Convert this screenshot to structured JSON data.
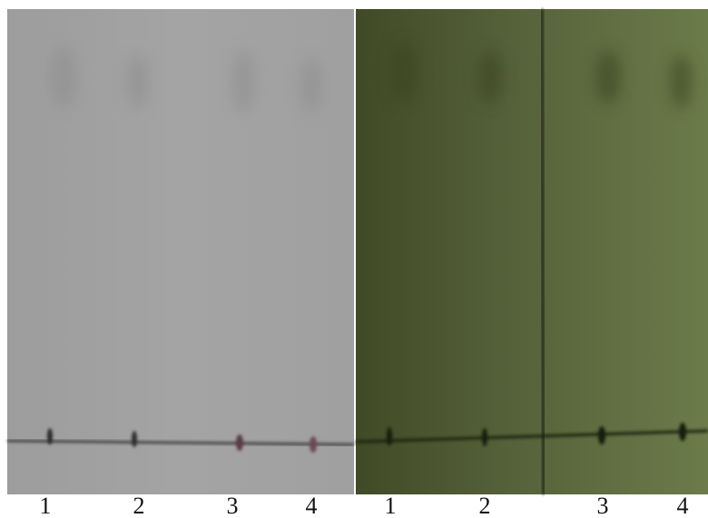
{
  "panels": [
    {
      "lanes": [
        "1",
        "2",
        "3",
        "4"
      ]
    },
    {
      "lanes": [
        "1",
        "2",
        "3",
        "4"
      ]
    }
  ]
}
